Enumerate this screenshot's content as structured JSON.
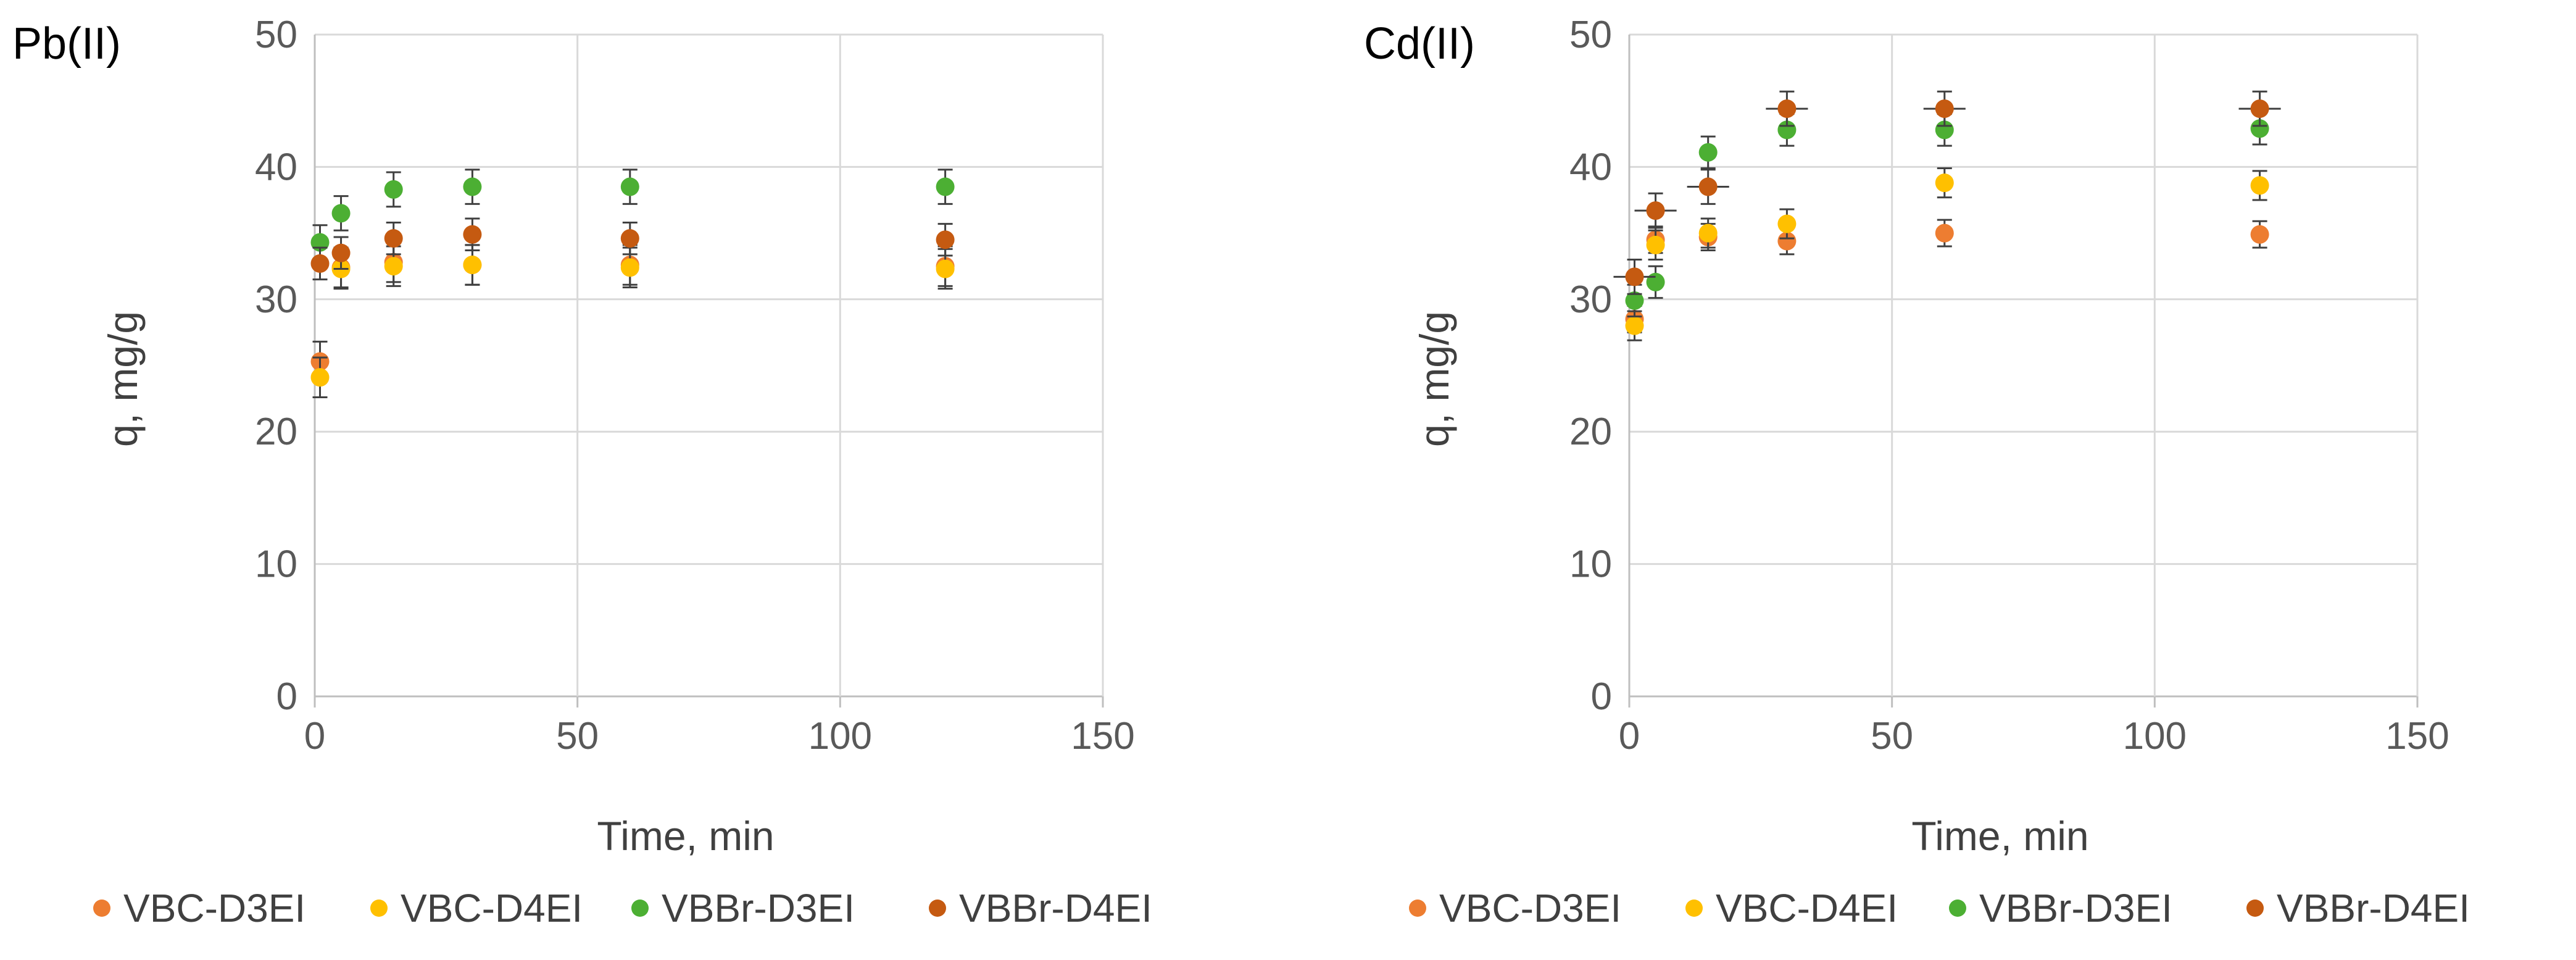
{
  "colors": {
    "grid": "#d9d9d9",
    "axis": "#bfbfbf",
    "errorbar": "#404040",
    "series": [
      "#ED7D31",
      "#FFC000",
      "#4CAF33",
      "#C55A11"
    ]
  },
  "chart_data": [
    {
      "type": "scatter",
      "title": "Pb(II)",
      "xlabel": "Time, min",
      "ylabel": "q, mg/g",
      "xlim": [
        0,
        150
      ],
      "ylim": [
        0,
        50
      ],
      "xticks": [
        "0",
        "50",
        "100",
        "150"
      ],
      "yticks": [
        "0",
        "10",
        "20",
        "30",
        "40",
        "50"
      ],
      "grid": true,
      "legend_position": "bottom",
      "series": [
        {
          "name": "VBC-D3EI",
          "x": [
            1,
            5,
            15,
            30,
            60,
            120
          ],
          "y": [
            25.3,
            32.4,
            32.8,
            32.6,
            32.6,
            32.5
          ],
          "yerr": 1.5,
          "xerr": 1
        },
        {
          "name": "VBC-D4EI",
          "x": [
            1,
            5,
            15,
            30,
            60,
            120
          ],
          "y": [
            24.1,
            32.3,
            32.5,
            32.6,
            32.4,
            32.3
          ],
          "yerr": 1.5,
          "xerr": 1
        },
        {
          "name": "VBBr-D3EI",
          "x": [
            1,
            5,
            15,
            30,
            60,
            120
          ],
          "y": [
            34.3,
            36.5,
            38.3,
            38.5,
            38.5,
            38.5
          ],
          "yerr": 1.3,
          "xerr": 1
        },
        {
          "name": "VBBr-D4EI",
          "x": [
            1,
            5,
            15,
            30,
            60,
            120
          ],
          "y": [
            32.7,
            33.5,
            34.6,
            34.9,
            34.6,
            34.5
          ],
          "yerr": 1.2,
          "xerr": 1
        }
      ]
    },
    {
      "type": "scatter",
      "title": "Cd(II)",
      "xlabel": "Time, min",
      "ylabel": "q, mg/g",
      "xlim": [
        0,
        150
      ],
      "ylim": [
        0,
        50
      ],
      "xticks": [
        "0",
        "50",
        "100",
        "150"
      ],
      "yticks": [
        "0",
        "10",
        "20",
        "30",
        "40",
        "50"
      ],
      "grid": true,
      "legend_position": "bottom",
      "series": [
        {
          "name": "VBC-D3EI",
          "x": [
            1,
            5,
            15,
            30,
            60,
            120
          ],
          "y": [
            28.5,
            34.5,
            34.7,
            34.4,
            35.0,
            34.9
          ],
          "yerr": 1.0,
          "xerr": 1
        },
        {
          "name": "VBC-D4EI",
          "x": [
            1,
            5,
            15,
            30,
            60,
            120
          ],
          "y": [
            28.0,
            34.1,
            35.0,
            35.7,
            38.8,
            38.6
          ],
          "yerr": 1.1,
          "xerr": 1
        },
        {
          "name": "VBBr-D3EI",
          "x": [
            1,
            5,
            15,
            30,
            60,
            120
          ],
          "y": [
            29.9,
            31.3,
            41.1,
            42.8,
            42.8,
            42.9
          ],
          "yerr": 1.2,
          "xerr": 1
        },
        {
          "name": "VBBr-D4EI",
          "x": [
            1,
            5,
            15,
            30,
            60,
            120
          ],
          "y": [
            31.7,
            36.7,
            38.5,
            44.4,
            44.4,
            44.4
          ],
          "yerr": 1.3,
          "xerr": 4
        }
      ]
    }
  ]
}
